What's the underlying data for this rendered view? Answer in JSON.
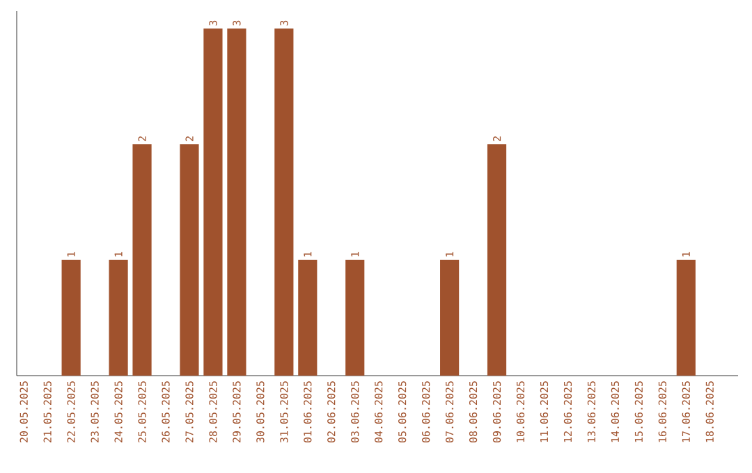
{
  "chart_data": {
    "type": "bar",
    "categories": [
      "20.05.2025",
      "21.05.2025",
      "22.05.2025",
      "23.05.2025",
      "24.05.2025",
      "25.05.2025",
      "26.05.2025",
      "27.05.2025",
      "28.05.2025",
      "29.05.2025",
      "30.05.2025",
      "31.05.2025",
      "01.06.2025",
      "02.06.2025",
      "03.06.2025",
      "04.06.2025",
      "05.06.2025",
      "06.06.2025",
      "07.06.2025",
      "08.06.2025",
      "09.06.2025",
      "10.06.2025",
      "11.06.2025",
      "12.06.2025",
      "13.06.2025",
      "14.06.2025",
      "15.06.2025",
      "16.06.2025",
      "17.06.2025",
      "18.06.2025"
    ],
    "values": [
      0,
      0,
      1,
      0,
      1,
      2,
      0,
      2,
      3,
      3,
      0,
      3,
      1,
      0,
      1,
      0,
      0,
      0,
      1,
      0,
      2,
      0,
      0,
      0,
      0,
      0,
      0,
      0,
      1,
      0
    ],
    "value_labels": [
      null,
      null,
      "1",
      null,
      "1",
      "2",
      null,
      "2",
      "3",
      "3",
      null,
      "3",
      "1",
      null,
      "1",
      null,
      null,
      null,
      "1",
      null,
      "2",
      null,
      null,
      null,
      null,
      null,
      null,
      null,
      "1",
      null
    ],
    "color": "#a0522d"
  }
}
